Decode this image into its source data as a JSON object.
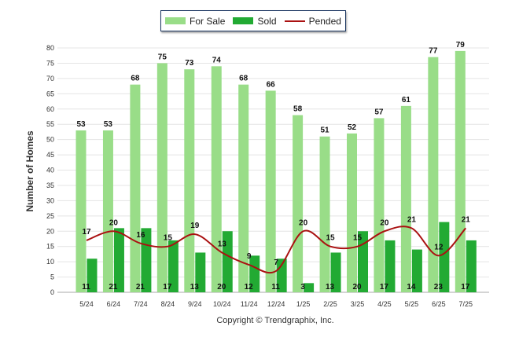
{
  "chart_data": {
    "type": "bar",
    "categories": [
      "5/24",
      "6/24",
      "7/24",
      "8/24",
      "9/24",
      "10/24",
      "11/24",
      "12/24",
      "1/25",
      "2/25",
      "3/25",
      "4/25",
      "5/25",
      "6/25",
      "7/25"
    ],
    "series": [
      {
        "name": "For Sale",
        "type": "bar",
        "color": "#99dd88",
        "values": [
          53,
          53,
          68,
          75,
          73,
          74,
          68,
          66,
          58,
          51,
          52,
          57,
          61,
          77,
          79
        ]
      },
      {
        "name": "Sold",
        "type": "bar",
        "color": "#22aa33",
        "values": [
          11,
          21,
          21,
          17,
          13,
          20,
          12,
          11,
          3,
          13,
          20,
          17,
          14,
          23,
          17
        ]
      },
      {
        "name": "Pended",
        "type": "line",
        "color": "#aa1111",
        "values": [
          17,
          20,
          16,
          15,
          19,
          13,
          9,
          7,
          20,
          15,
          15,
          20,
          21,
          12,
          21
        ]
      }
    ],
    "ylabel": "Number of Homes",
    "xlabel": "",
    "ylim": [
      0,
      80
    ],
    "ytick_step": 5,
    "grid": true,
    "legend": "top-center"
  },
  "footer": {
    "copyright": "Copyright © Trendgraphix, Inc."
  }
}
